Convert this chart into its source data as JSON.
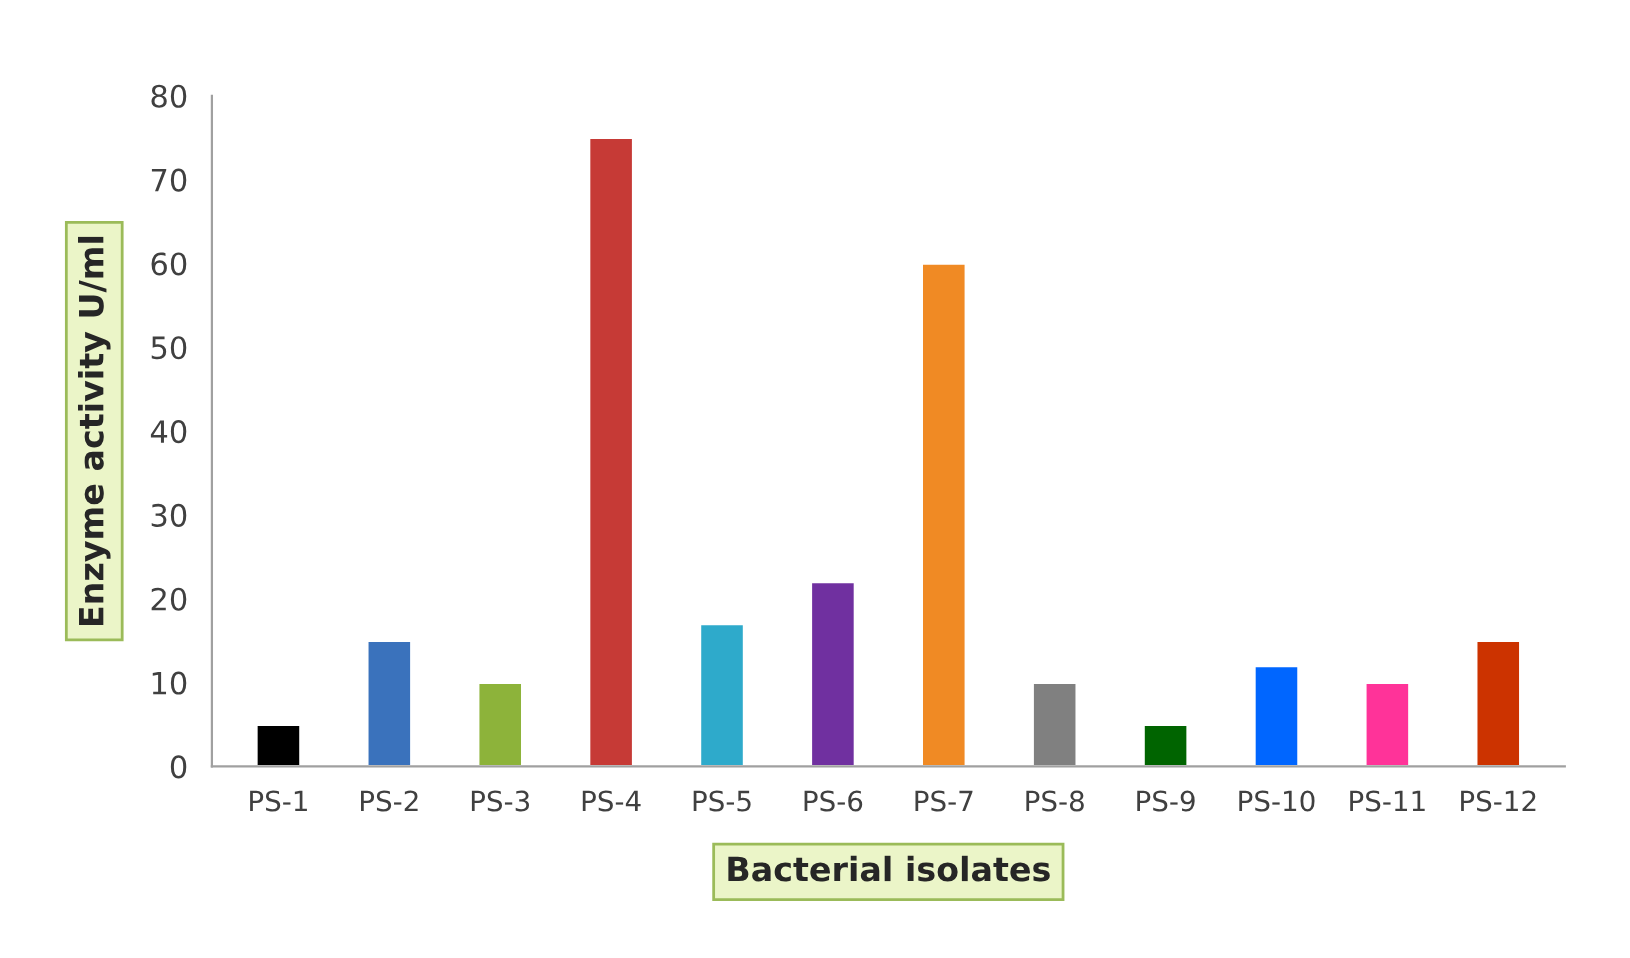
{
  "chart_data": {
    "type": "bar",
    "xlabel": "Bacterial isolates",
    "ylabel": "Enzyme activity U/ml",
    "categories": [
      "PS-1",
      "PS-2",
      "PS-3",
      "PS-4",
      "PS-5",
      "PS-6",
      "PS-7",
      "PS-8",
      "PS-9",
      "PS-10",
      "PS-11",
      "PS-12"
    ],
    "values": [
      5,
      15,
      10,
      75,
      17,
      22,
      60,
      10,
      5,
      12,
      10,
      15
    ],
    "colors": [
      "#000000",
      "#3a72bc",
      "#8db33a",
      "#c63a36",
      "#2eaacb",
      "#7030a0",
      "#f08a24",
      "#808080",
      "#006400",
      "#0066ff",
      "#ff3399",
      "#cc3300"
    ],
    "ylim": [
      0,
      80
    ],
    "yticks": [
      0,
      10,
      20,
      30,
      40,
      50,
      60,
      70,
      80
    ],
    "grid": false,
    "legend": false
  }
}
